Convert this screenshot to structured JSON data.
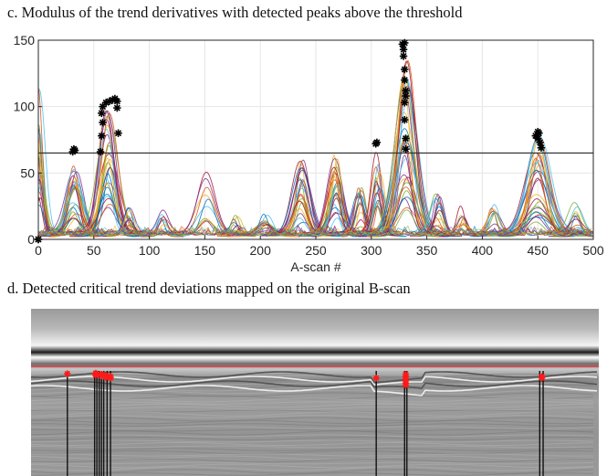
{
  "panel_c": {
    "caption": "c. Modulus of the trend derivatives with detected peaks above the threshold"
  },
  "panel_d": {
    "caption": "d. Detected critical trend deviations mapped on the original B-scan"
  },
  "chart_data": {
    "type": "line",
    "xlabel": "A-scan #",
    "ylabel": "",
    "xlim": [
      0,
      500
    ],
    "ylim": [
      0,
      150
    ],
    "x_ticks": [
      0,
      50,
      100,
      150,
      200,
      250,
      300,
      350,
      400,
      450,
      500
    ],
    "y_ticks": [
      0,
      50,
      100,
      150
    ],
    "grid": true,
    "threshold": 65,
    "peak_groups": [
      {
        "x": [
          0,
          0
        ],
        "y": [
          0,
          0
        ]
      },
      {
        "x": [
          32,
          33,
          31
        ],
        "y": [
          68,
          67,
          66
        ]
      },
      {
        "x": [
          56,
          57,
          58,
          57,
          58,
          61,
          64,
          67,
          69,
          71,
          71,
          72
        ],
        "y": [
          66,
          78,
          88,
          95,
          100,
          103,
          104,
          105,
          106,
          104,
          99,
          80
        ]
      },
      {
        "x": [
          304,
          305
        ],
        "y": [
          72,
          73
        ]
      },
      {
        "x": [
          328,
          329,
          329,
          330,
          330,
          331,
          331,
          330,
          330,
          331,
          331,
          330
        ],
        "y": [
          147,
          143,
          138,
          128,
          120,
          112,
          108,
          103,
          90,
          76,
          68,
          148
        ]
      },
      {
        "x": [
          448,
          450,
          451,
          452,
          453,
          450
        ],
        "y": [
          78,
          81,
          80,
          73,
          69,
          76
        ]
      }
    ],
    "series_palette": [
      "#0072bd",
      "#d95319",
      "#edb120",
      "#7e2f8e",
      "#77ac30",
      "#4dbeee",
      "#a2142f"
    ],
    "bscan": {
      "surface_line_color": "#ee2222",
      "marker_color": "#ff1a1a",
      "peak_markers": [
        {
          "a_scan": 32,
          "depth": [
            0.5
          ]
        },
        {
          "a_scan": 57,
          "depth": [
            0.4,
            0.6,
            0.8
          ]
        },
        {
          "a_scan": 62,
          "depth": [
            0.6,
            0.9
          ]
        },
        {
          "a_scan": 66,
          "depth": [
            0.8,
            1.0,
            1.2
          ]
        },
        {
          "a_scan": 70,
          "depth": [
            1.0,
            1.3
          ]
        },
        {
          "a_scan": 304,
          "depth": [
            1.3
          ]
        },
        {
          "a_scan": 330,
          "depth": [
            0.6,
            1.0,
            1.4,
            1.8,
            2.2,
            2.6
          ]
        },
        {
          "a_scan": 450,
          "depth": [
            1.0,
            1.3
          ]
        }
      ],
      "vertical_lines": [
        32,
        56,
        58,
        60,
        62,
        64,
        67,
        70,
        304,
        329,
        331,
        448,
        451
      ]
    }
  }
}
